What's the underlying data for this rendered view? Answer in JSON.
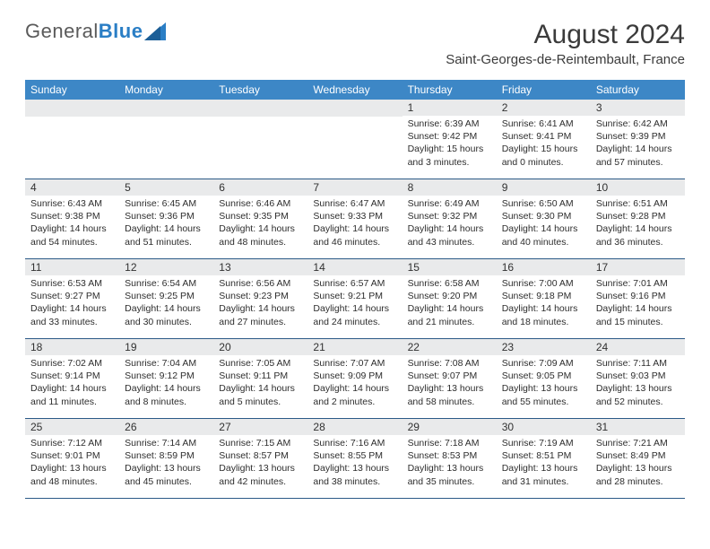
{
  "logo": {
    "text1": "General",
    "text2": "Blue"
  },
  "title": "August 2024",
  "location": "Saint-Georges-de-Reintembault, France",
  "colors": {
    "header_bg": "#3d87c6",
    "header_text": "#ffffff",
    "daynum_bg": "#e9eaeb",
    "week_divider": "#2c5a87",
    "text": "#2d2d2d",
    "logo_grey": "#5a5a5a",
    "logo_blue": "#2a7ec5"
  },
  "day_names": [
    "Sunday",
    "Monday",
    "Tuesday",
    "Wednesday",
    "Thursday",
    "Friday",
    "Saturday"
  ],
  "weeks": [
    [
      null,
      null,
      null,
      null,
      {
        "d": "1",
        "rise": "6:39 AM",
        "set": "9:42 PM",
        "dl": "15 hours and 3 minutes."
      },
      {
        "d": "2",
        "rise": "6:41 AM",
        "set": "9:41 PM",
        "dl": "15 hours and 0 minutes."
      },
      {
        "d": "3",
        "rise": "6:42 AM",
        "set": "9:39 PM",
        "dl": "14 hours and 57 minutes."
      }
    ],
    [
      {
        "d": "4",
        "rise": "6:43 AM",
        "set": "9:38 PM",
        "dl": "14 hours and 54 minutes."
      },
      {
        "d": "5",
        "rise": "6:45 AM",
        "set": "9:36 PM",
        "dl": "14 hours and 51 minutes."
      },
      {
        "d": "6",
        "rise": "6:46 AM",
        "set": "9:35 PM",
        "dl": "14 hours and 48 minutes."
      },
      {
        "d": "7",
        "rise": "6:47 AM",
        "set": "9:33 PM",
        "dl": "14 hours and 46 minutes."
      },
      {
        "d": "8",
        "rise": "6:49 AM",
        "set": "9:32 PM",
        "dl": "14 hours and 43 minutes."
      },
      {
        "d": "9",
        "rise": "6:50 AM",
        "set": "9:30 PM",
        "dl": "14 hours and 40 minutes."
      },
      {
        "d": "10",
        "rise": "6:51 AM",
        "set": "9:28 PM",
        "dl": "14 hours and 36 minutes."
      }
    ],
    [
      {
        "d": "11",
        "rise": "6:53 AM",
        "set": "9:27 PM",
        "dl": "14 hours and 33 minutes."
      },
      {
        "d": "12",
        "rise": "6:54 AM",
        "set": "9:25 PM",
        "dl": "14 hours and 30 minutes."
      },
      {
        "d": "13",
        "rise": "6:56 AM",
        "set": "9:23 PM",
        "dl": "14 hours and 27 minutes."
      },
      {
        "d": "14",
        "rise": "6:57 AM",
        "set": "9:21 PM",
        "dl": "14 hours and 24 minutes."
      },
      {
        "d": "15",
        "rise": "6:58 AM",
        "set": "9:20 PM",
        "dl": "14 hours and 21 minutes."
      },
      {
        "d": "16",
        "rise": "7:00 AM",
        "set": "9:18 PM",
        "dl": "14 hours and 18 minutes."
      },
      {
        "d": "17",
        "rise": "7:01 AM",
        "set": "9:16 PM",
        "dl": "14 hours and 15 minutes."
      }
    ],
    [
      {
        "d": "18",
        "rise": "7:02 AM",
        "set": "9:14 PM",
        "dl": "14 hours and 11 minutes."
      },
      {
        "d": "19",
        "rise": "7:04 AM",
        "set": "9:12 PM",
        "dl": "14 hours and 8 minutes."
      },
      {
        "d": "20",
        "rise": "7:05 AM",
        "set": "9:11 PM",
        "dl": "14 hours and 5 minutes."
      },
      {
        "d": "21",
        "rise": "7:07 AM",
        "set": "9:09 PM",
        "dl": "14 hours and 2 minutes."
      },
      {
        "d": "22",
        "rise": "7:08 AM",
        "set": "9:07 PM",
        "dl": "13 hours and 58 minutes."
      },
      {
        "d": "23",
        "rise": "7:09 AM",
        "set": "9:05 PM",
        "dl": "13 hours and 55 minutes."
      },
      {
        "d": "24",
        "rise": "7:11 AM",
        "set": "9:03 PM",
        "dl": "13 hours and 52 minutes."
      }
    ],
    [
      {
        "d": "25",
        "rise": "7:12 AM",
        "set": "9:01 PM",
        "dl": "13 hours and 48 minutes."
      },
      {
        "d": "26",
        "rise": "7:14 AM",
        "set": "8:59 PM",
        "dl": "13 hours and 45 minutes."
      },
      {
        "d": "27",
        "rise": "7:15 AM",
        "set": "8:57 PM",
        "dl": "13 hours and 42 minutes."
      },
      {
        "d": "28",
        "rise": "7:16 AM",
        "set": "8:55 PM",
        "dl": "13 hours and 38 minutes."
      },
      {
        "d": "29",
        "rise": "7:18 AM",
        "set": "8:53 PM",
        "dl": "13 hours and 35 minutes."
      },
      {
        "d": "30",
        "rise": "7:19 AM",
        "set": "8:51 PM",
        "dl": "13 hours and 31 minutes."
      },
      {
        "d": "31",
        "rise": "7:21 AM",
        "set": "8:49 PM",
        "dl": "13 hours and 28 minutes."
      }
    ]
  ],
  "labels": {
    "sunrise": "Sunrise:",
    "sunset": "Sunset:",
    "daylight": "Daylight:"
  }
}
